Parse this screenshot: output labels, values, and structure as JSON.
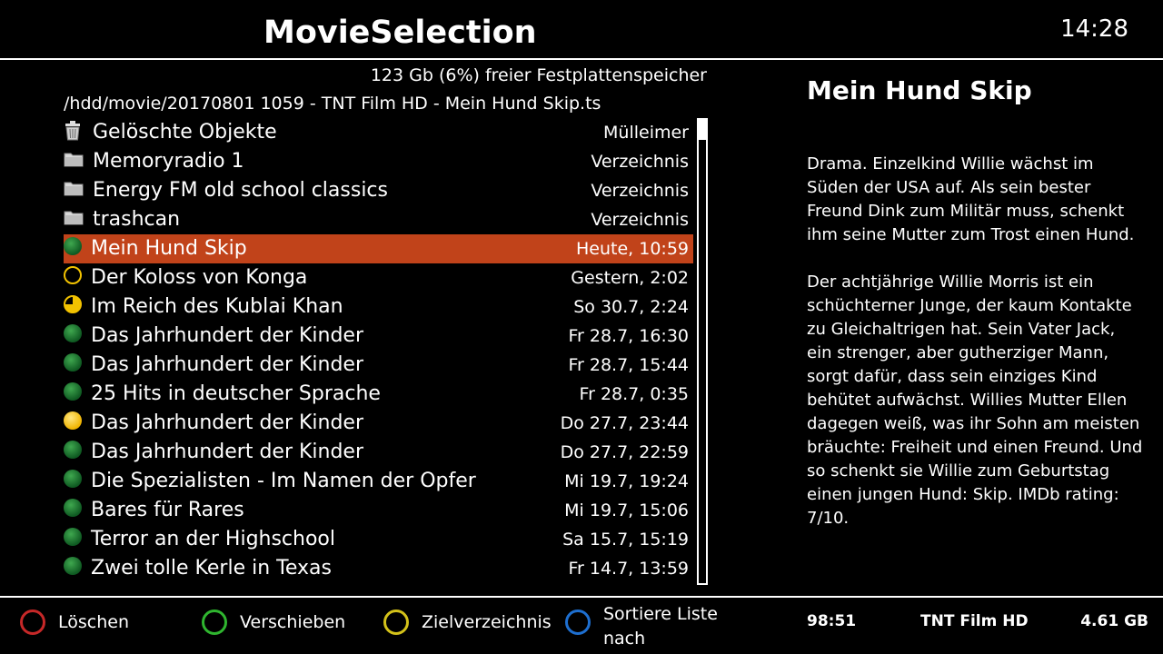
{
  "header": {
    "title": "MovieSelection",
    "clock": "14:28"
  },
  "disk_free": "123 Gb (6%) freier Festplattenspeicher",
  "path": "/hdd/movie/20170801 1059 - TNT Film HD - Mein Hund Skip.ts",
  "folders": [
    {
      "label": "Gelöschte Objekte",
      "info": "Mülleimer",
      "icon": "trash-icon"
    },
    {
      "label": "Memoryradio 1",
      "info": "Verzeichnis",
      "icon": "folder-icon"
    },
    {
      "label": "Energy FM old school classics",
      "info": "Verzeichnis",
      "icon": "folder-icon"
    },
    {
      "label": "trashcan",
      "info": "Verzeichnis",
      "icon": "folder-icon"
    }
  ],
  "movies": [
    {
      "label": "Mein Hund Skip",
      "info": "Heute, 10:59",
      "status": "green",
      "selected": true
    },
    {
      "label": "Der Koloss von Konga",
      "info": "Gestern, 2:02",
      "status": "empty"
    },
    {
      "label": "Im Reich des Kublai Khan",
      "info": "So 30.7, 2:24",
      "status": "partial"
    },
    {
      "label": "Das Jahrhundert der Kinder",
      "info": "Fr 28.7, 16:30",
      "status": "green"
    },
    {
      "label": "Das Jahrhundert der Kinder",
      "info": "Fr 28.7, 15:44",
      "status": "green"
    },
    {
      "label": "25 Hits in deutscher Sprache",
      "info": "Fr 28.7, 0:35",
      "status": "green"
    },
    {
      "label": "Das Jahrhundert der Kinder",
      "info": "Do 27.7, 23:44",
      "status": "yellow"
    },
    {
      "label": "Das Jahrhundert der Kinder",
      "info": "Do 27.7, 22:59",
      "status": "green"
    },
    {
      "label": "Die Spezialisten - Im Namen der Opfer",
      "info": "Mi 19.7, 19:24",
      "status": "green"
    },
    {
      "label": "Bares für Rares",
      "info": "Mi 19.7, 15:06",
      "status": "green"
    },
    {
      "label": "Terror an der Highschool",
      "info": "Sa 15.7, 15:19",
      "status": "green"
    },
    {
      "label": "Zwei tolle Kerle in Texas",
      "info": "Fr 14.7, 13:59",
      "status": "green"
    }
  ],
  "detail": {
    "title": "Mein Hund Skip",
    "description": "Drama. Einzelkind Willie wächst im Süden der USA auf. Als sein bester Freund Dink zum Militär muss, schenkt ihm seine Mutter zum Trost einen Hund.\n\nDer achtjährige Willie Morris ist ein schüchterner Junge, der kaum Kontakte zu Gleichaltrigen hat. Sein Vater Jack, ein strenger, aber gutherziger Mann, sorgt dafür, dass sein einziges Kind behütet aufwächst. Willies Mutter Ellen dagegen weiß, was ihr Sohn am meisten bräuchte: Freiheit und einen Freund. Und so schenkt sie Willie zum Geburtstag einen jungen Hund: Skip. IMDb rating: 7/10."
  },
  "buttons": {
    "red": "Löschen",
    "green": "Verschieben",
    "yellow": "Zielverzeichnis",
    "blue": "Sortiere Liste nach"
  },
  "status_bar": {
    "duration": "98:51",
    "channel": "TNT Film HD",
    "size": "4.61 GB"
  },
  "colors": {
    "selection": "#c1431a",
    "red": "#c62828",
    "green": "#2fb52f",
    "yellow": "#d4c21a",
    "blue": "#1e6fd0",
    "watched_green": "#1f7a33",
    "progress_yellow": "#f2c200"
  }
}
